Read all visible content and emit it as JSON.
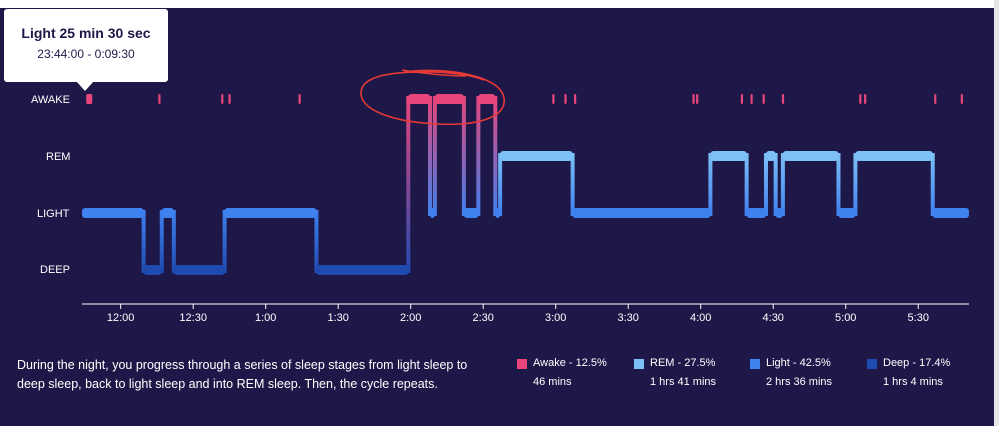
{
  "tooltip": {
    "title": "Light 25 min 30 sec",
    "time_range": "23:44:00 - 0:09:30"
  },
  "description": "During the night, you progress through a series of sleep stages from light sleep to deep sleep, back to light sleep and into REM sleep. Then, the cycle repeats.",
  "legend": [
    {
      "key": "awake",
      "label": "Awake - 12.5%",
      "duration": "46 mins",
      "color": "#e8457a"
    },
    {
      "key": "rem",
      "label": "REM - 27.5%",
      "duration": "1 hrs 41 mins",
      "color": "#7cc0f7"
    },
    {
      "key": "light",
      "label": "Light - 42.5%",
      "duration": "2 hrs 36 mins",
      "color": "#3f81ee"
    },
    {
      "key": "deep",
      "label": "Deep - 17.4%",
      "duration": "1 hrs 4 mins",
      "color": "#1f4bb0"
    }
  ],
  "annotation": {
    "color": "#e53935"
  },
  "chart_data": {
    "type": "step",
    "title": "",
    "xlabel": "",
    "ylabel": "",
    "stages": [
      "DEEP",
      "LIGHT",
      "REM",
      "AWAKE"
    ],
    "x_ticks": [
      "12:00",
      "12:30",
      "1:00",
      "1:30",
      "2:00",
      "2:30",
      "3:00",
      "3:30",
      "4:00",
      "4:30",
      "5:00",
      "5:30"
    ],
    "x_tick_minutes": [
      16,
      46,
      76,
      106,
      136,
      166,
      196,
      226,
      256,
      286,
      316,
      346
    ],
    "xlim": [
      0,
      367
    ],
    "segments": [
      {
        "stage": "LIGHT",
        "start": 0,
        "end": 25.5
      },
      {
        "stage": "DEEP",
        "start": 25.5,
        "end": 33
      },
      {
        "stage": "LIGHT",
        "start": 33,
        "end": 38
      },
      {
        "stage": "DEEP",
        "start": 38,
        "end": 59
      },
      {
        "stage": "LIGHT",
        "start": 59,
        "end": 97
      },
      {
        "stage": "DEEP",
        "start": 97,
        "end": 135
      },
      {
        "stage": "AWAKE",
        "start": 135,
        "end": 144
      },
      {
        "stage": "LIGHT",
        "start": 144,
        "end": 146
      },
      {
        "stage": "AWAKE",
        "start": 146,
        "end": 158
      },
      {
        "stage": "LIGHT",
        "start": 158,
        "end": 164
      },
      {
        "stage": "AWAKE",
        "start": 164,
        "end": 171
      },
      {
        "stage": "LIGHT",
        "start": 171,
        "end": 173
      },
      {
        "stage": "REM",
        "start": 173,
        "end": 203
      },
      {
        "stage": "LIGHT",
        "start": 203,
        "end": 260
      },
      {
        "stage": "REM",
        "start": 260,
        "end": 275
      },
      {
        "stage": "LIGHT",
        "start": 275,
        "end": 283
      },
      {
        "stage": "REM",
        "start": 283,
        "end": 287
      },
      {
        "stage": "LIGHT",
        "start": 287,
        "end": 290
      },
      {
        "stage": "REM",
        "start": 290,
        "end": 313
      },
      {
        "stage": "LIGHT",
        "start": 313,
        "end": 320
      },
      {
        "stage": "REM",
        "start": 320,
        "end": 352
      },
      {
        "stage": "LIGHT",
        "start": 352,
        "end": 367
      }
    ],
    "awake_blips": [
      3,
      32,
      58,
      61,
      90,
      195,
      200,
      204,
      253,
      254.5,
      273,
      277,
      282,
      290,
      322,
      324,
      353,
      364
    ]
  }
}
